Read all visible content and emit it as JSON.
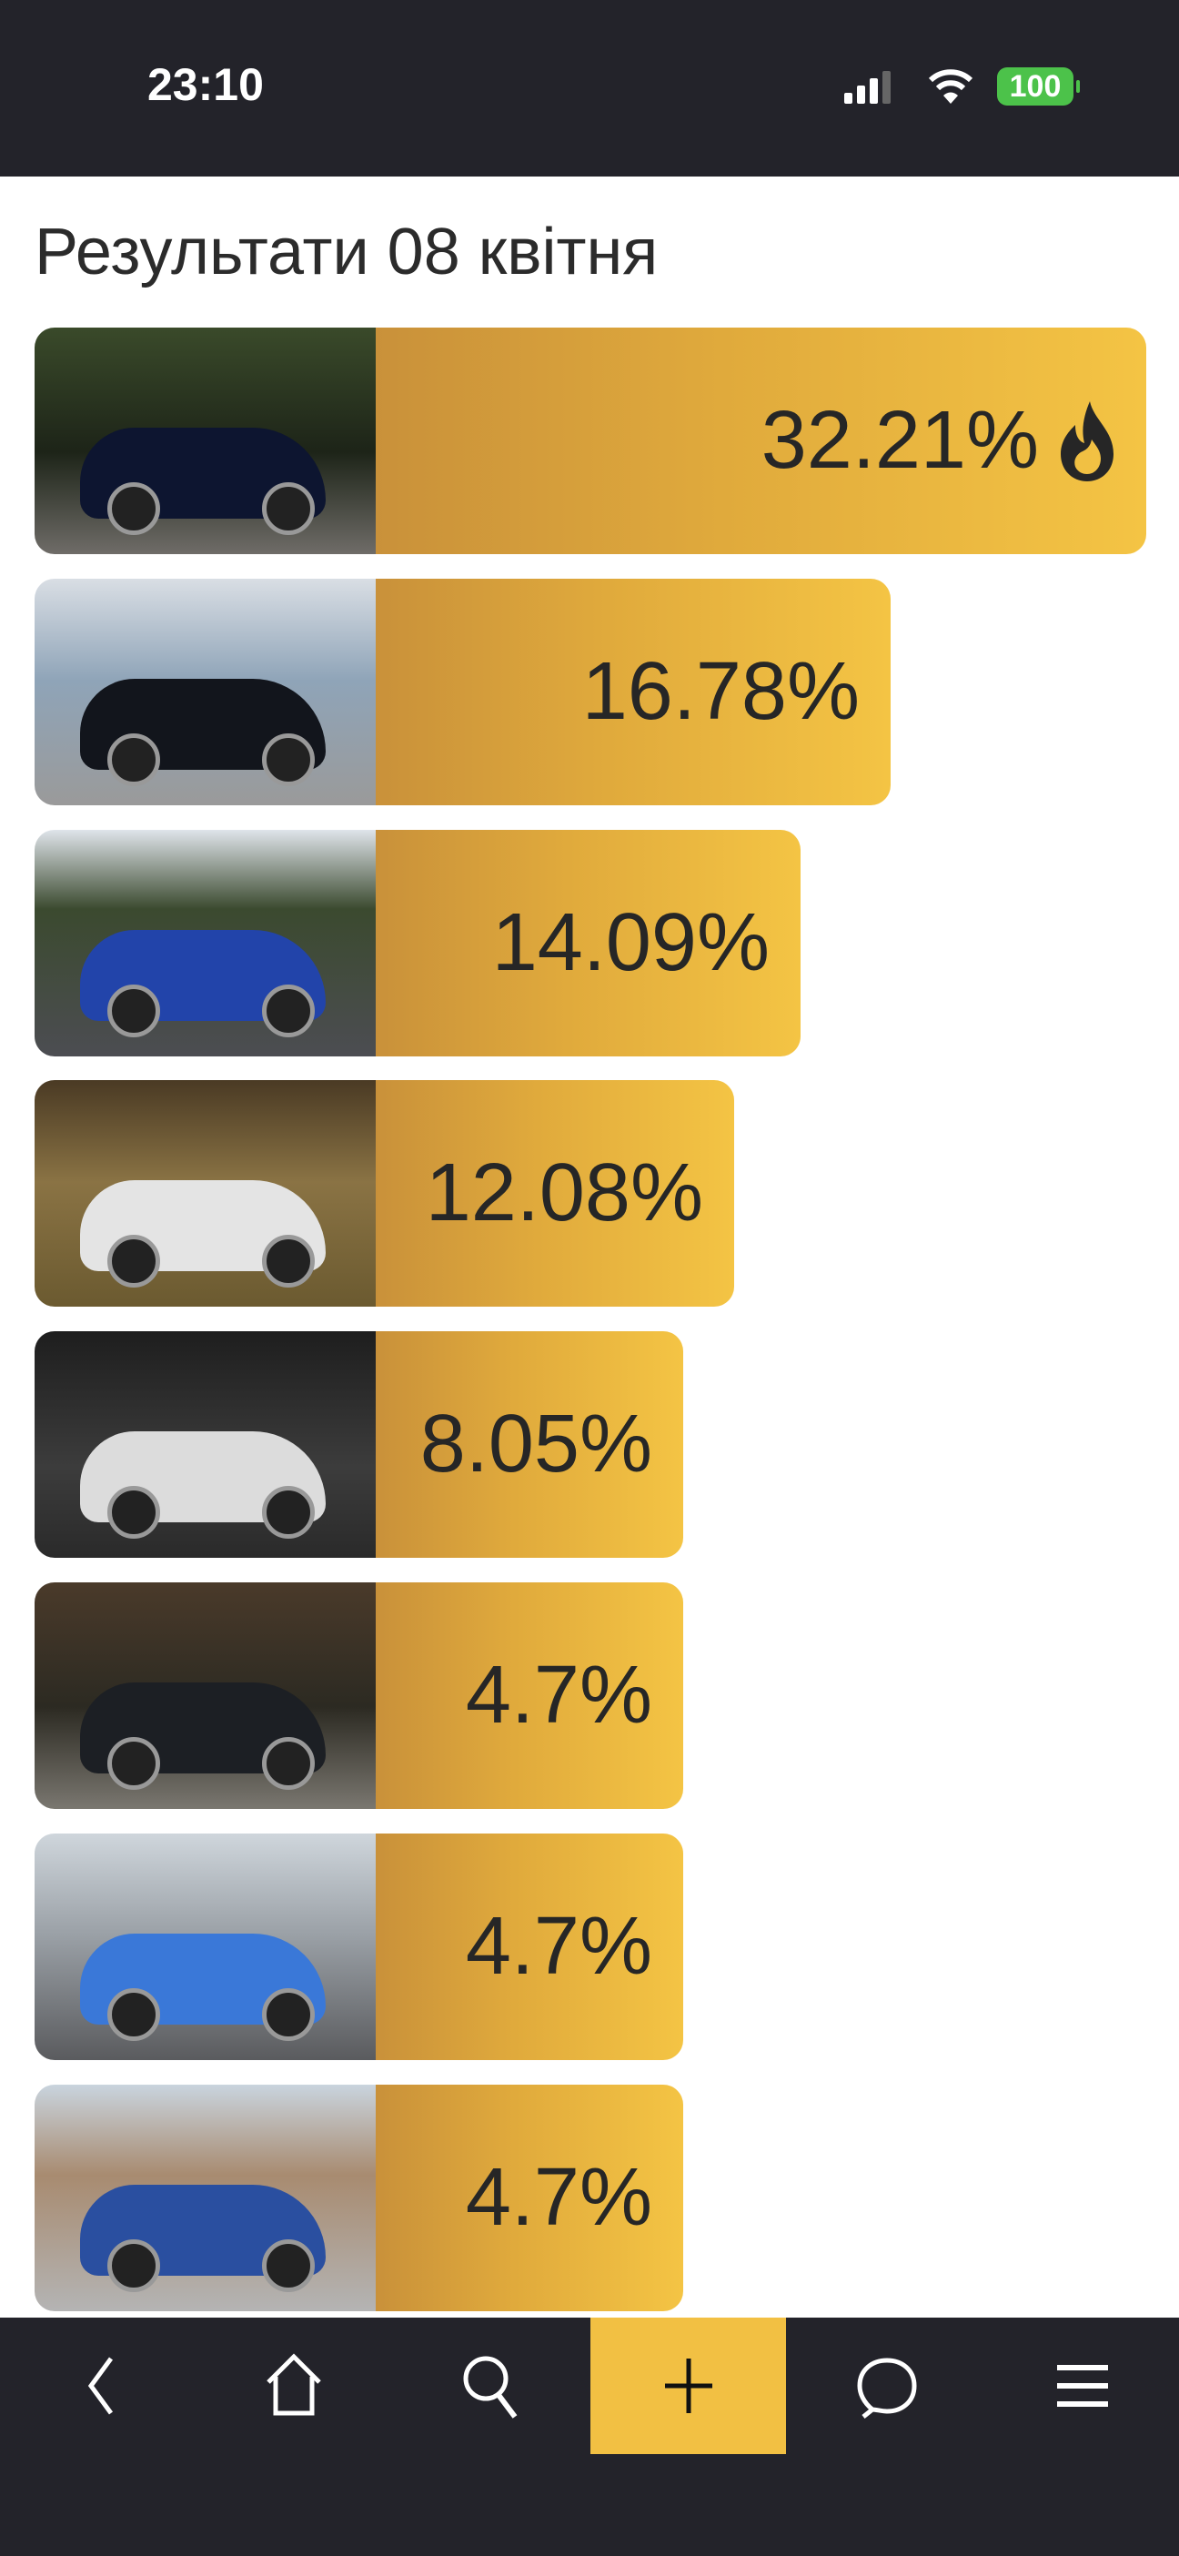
{
  "status_bar": {
    "time": "23:10",
    "battery": "100"
  },
  "page": {
    "title": "Результати 08 квітня"
  },
  "results": [
    {
      "percent": "32.21%",
      "value": 32.21,
      "hot": true
    },
    {
      "percent": "16.78%",
      "value": 16.78
    },
    {
      "percent": "14.09%",
      "value": 14.09
    },
    {
      "percent": "12.08%",
      "value": 12.08
    },
    {
      "percent": "8.05%",
      "value": 8.05
    },
    {
      "percent": "4.7%",
      "value": 4.7
    },
    {
      "percent": "4.7%",
      "value": 4.7
    },
    {
      "percent": "4.7%",
      "value": 4.7
    }
  ],
  "nav": {
    "items": [
      "back-icon",
      "home-icon",
      "search-icon",
      "plus-icon",
      "chat-icon",
      "menu-icon"
    ],
    "accent": "#f2c043"
  }
}
